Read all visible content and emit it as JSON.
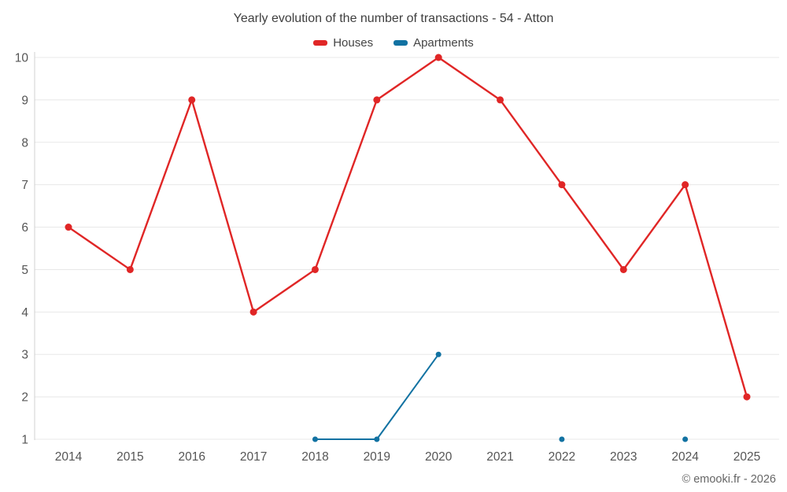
{
  "title": "Yearly evolution of the number of transactions - 54 - Atton",
  "footer": "© emooki.fr - 2026",
  "colors": {
    "houses": "#e02626",
    "apartments": "#1272a2",
    "gridline": "#e8e8e8",
    "axis": "#d0d0d0",
    "tick_text": "#555555",
    "title_text": "#3f3f3f"
  },
  "chart_data": {
    "type": "line",
    "title": "Yearly evolution of the number of transactions - 54 - Atton",
    "categories": [
      "2014",
      "2015",
      "2016",
      "2017",
      "2018",
      "2019",
      "2020",
      "2021",
      "2022",
      "2023",
      "2024",
      "2025"
    ],
    "series": [
      {
        "name": "Houses",
        "color": "#e02626",
        "point_radius": 4.5,
        "line_width": 2.4,
        "values": [
          6,
          5,
          9,
          4,
          5,
          9,
          10,
          9,
          7,
          5,
          7,
          2
        ]
      },
      {
        "name": "Apartments",
        "color": "#1272a2",
        "point_radius": 3.5,
        "line_width": 2,
        "values": [
          null,
          null,
          null,
          null,
          1,
          1,
          3,
          null,
          1,
          null,
          1,
          null
        ]
      }
    ],
    "xlabel": "",
    "ylabel": "",
    "ylim": [
      1,
      10
    ],
    "yticks": [
      1,
      2,
      3,
      4,
      5,
      6,
      7,
      8,
      9,
      10
    ],
    "grid": "horizontal",
    "legend_position": "top",
    "null_handling": "break-line"
  }
}
